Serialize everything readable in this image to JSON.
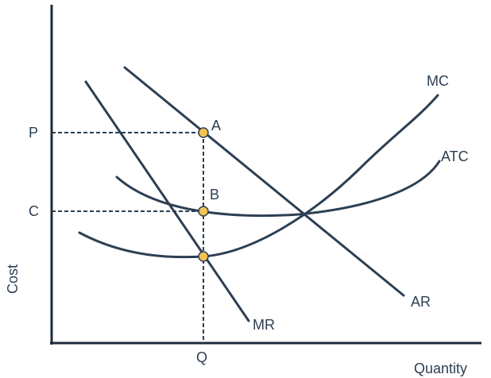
{
  "axes": {
    "y_label": "Cost",
    "x_label": "Quantity"
  },
  "ticks": {
    "price": "P",
    "cost": "C",
    "quantity": "Q"
  },
  "curves": {
    "mc": "MC",
    "atc": "ATC",
    "ar": "AR",
    "mr": "MR"
  },
  "points": {
    "a": "A",
    "b": "B"
  },
  "colors": {
    "curve": "#2d3f52",
    "point_fill": "#f3c451",
    "background": "#ffffff"
  }
}
